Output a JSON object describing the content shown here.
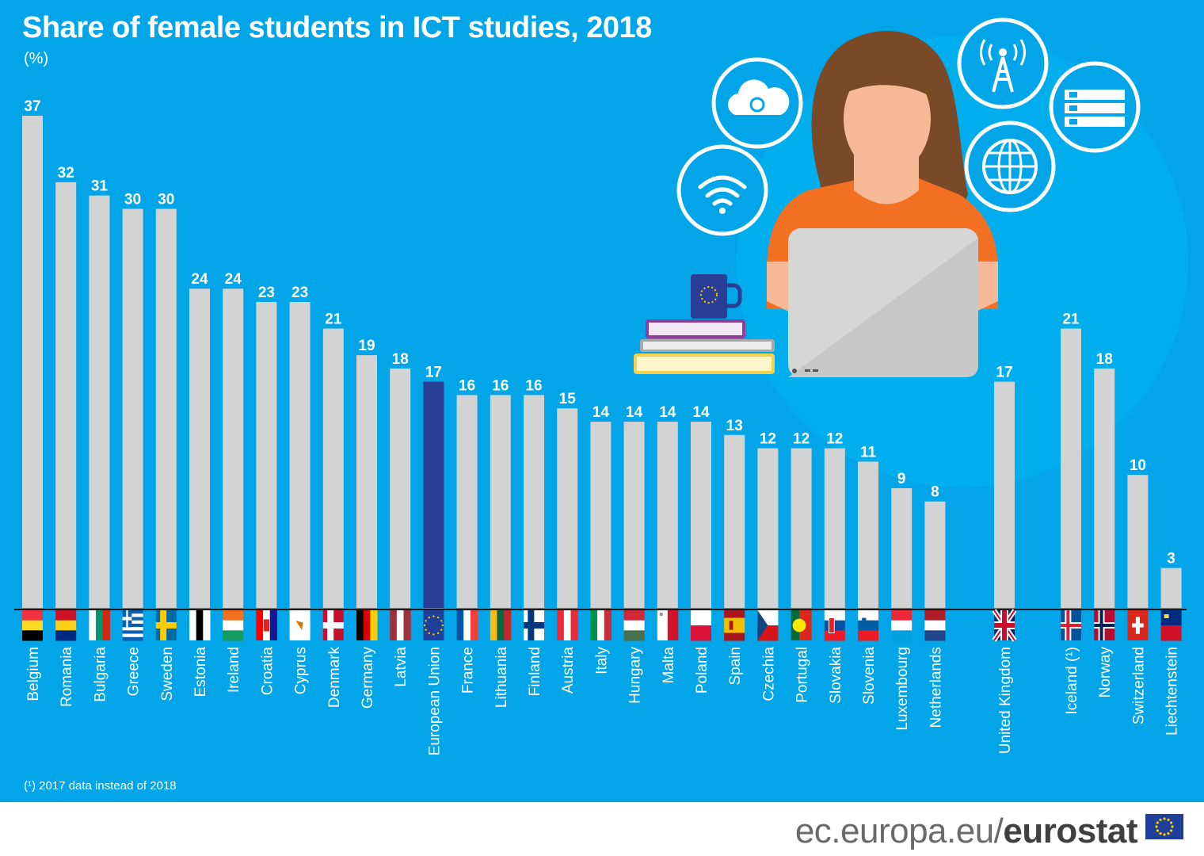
{
  "header": {
    "title": "Share of female students in ICT studies, 2018",
    "unit": "(%)",
    "footnote": "(¹) 2017 data instead of 2018"
  },
  "footer": {
    "site_prefix": "ec.europa.eu/",
    "site_brand": "eurostat"
  },
  "colors": {
    "background": "#02a5e8",
    "bar": "#d3d3d3",
    "bar_highlight": "#2a3e96",
    "text": "#ffffff"
  },
  "illustration": {
    "icons": [
      "wifi-icon",
      "cloud-sync-icon",
      "antenna-tower-icon",
      "server-rack-icon",
      "globe-icon",
      "laptop-icon",
      "mug-icon",
      "books-icon"
    ]
  },
  "chart_data": {
    "type": "bar",
    "ylim": [
      0,
      37
    ],
    "xlabel": "",
    "ylabel": "",
    "grid": false,
    "categories": [
      "Belgium",
      "Romania",
      "Bulgaria",
      "Greece",
      "Sweden",
      "Estonia",
      "Ireland",
      "Croatia",
      "Cyprus",
      "Denmark",
      "Germany",
      "Latvia",
      "European Union",
      "France",
      "Lithuania",
      "Finland",
      "Austria",
      "Italy",
      "Hungary",
      "Malta",
      "Poland",
      "Spain",
      "Czechia",
      "Portugal",
      "Slovakia",
      "Slovenia",
      "Luxembourg",
      "Netherlands",
      "United Kingdom",
      "Iceland (¹)",
      "Norway",
      "Switzerland",
      "Liechtenstein"
    ],
    "values": [
      37,
      32,
      31,
      30,
      30,
      24,
      24,
      23,
      23,
      21,
      19,
      18,
      17,
      16,
      16,
      16,
      15,
      14,
      14,
      14,
      14,
      13,
      12,
      12,
      12,
      11,
      9,
      8,
      17,
      21,
      18,
      10,
      3
    ],
    "highlight": [
      "European Union"
    ]
  }
}
